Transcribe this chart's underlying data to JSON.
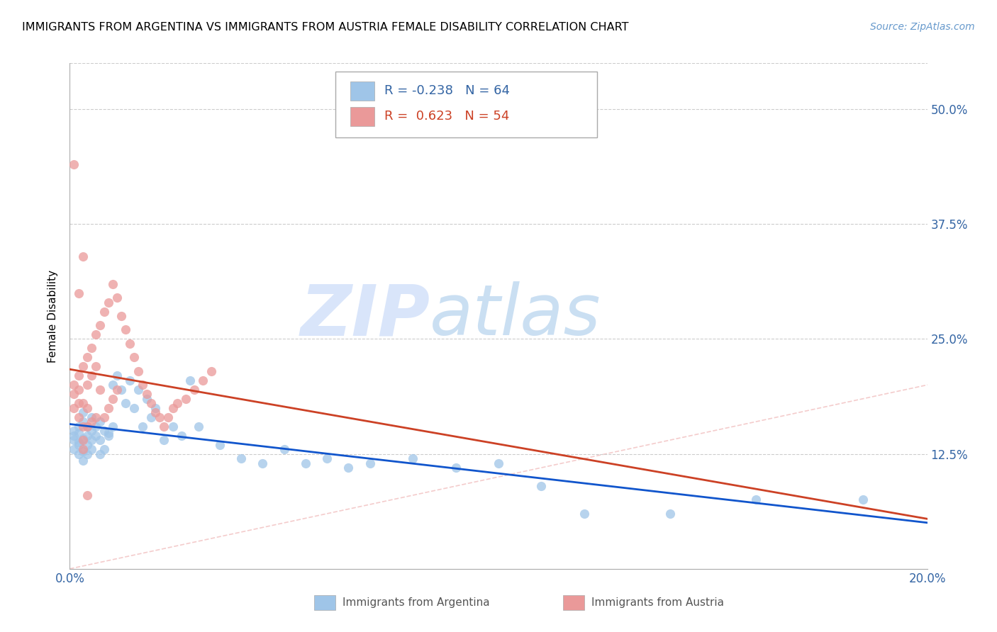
{
  "title": "IMMIGRANTS FROM ARGENTINA VS IMMIGRANTS FROM AUSTRIA FEMALE DISABILITY CORRELATION CHART",
  "source": "Source: ZipAtlas.com",
  "ylabel": "Female Disability",
  "xlim": [
    0.0,
    0.2
  ],
  "ylim": [
    0.0,
    0.55
  ],
  "argentina_color": "#9fc5e8",
  "austria_color": "#ea9999",
  "argentina_line_color": "#1155cc",
  "austria_line_color": "#cc4125",
  "diagonal_color": "#f4cccc",
  "R_argentina": -0.238,
  "N_argentina": 64,
  "R_austria": 0.623,
  "N_austria": 54,
  "watermark_zip": "ZIP",
  "watermark_atlas": "atlas",
  "arg_x": [
    0.001,
    0.001,
    0.001,
    0.001,
    0.002,
    0.002,
    0.002,
    0.002,
    0.002,
    0.003,
    0.003,
    0.003,
    0.003,
    0.004,
    0.004,
    0.004,
    0.004,
    0.005,
    0.005,
    0.005,
    0.006,
    0.006,
    0.007,
    0.007,
    0.008,
    0.008,
    0.009,
    0.01,
    0.01,
    0.011,
    0.012,
    0.013,
    0.014,
    0.015,
    0.016,
    0.017,
    0.018,
    0.019,
    0.02,
    0.022,
    0.024,
    0.026,
    0.028,
    0.03,
    0.035,
    0.04,
    0.045,
    0.05,
    0.055,
    0.06,
    0.065,
    0.07,
    0.08,
    0.09,
    0.1,
    0.11,
    0.12,
    0.14,
    0.16,
    0.185,
    0.003,
    0.005,
    0.007,
    0.009
  ],
  "arg_y": [
    0.14,
    0.15,
    0.13,
    0.145,
    0.135,
    0.125,
    0.155,
    0.148,
    0.138,
    0.142,
    0.128,
    0.16,
    0.118,
    0.145,
    0.155,
    0.135,
    0.125,
    0.15,
    0.14,
    0.13,
    0.155,
    0.145,
    0.16,
    0.14,
    0.15,
    0.13,
    0.148,
    0.2,
    0.155,
    0.21,
    0.195,
    0.18,
    0.205,
    0.175,
    0.195,
    0.155,
    0.185,
    0.165,
    0.175,
    0.14,
    0.155,
    0.145,
    0.205,
    0.155,
    0.135,
    0.12,
    0.115,
    0.13,
    0.115,
    0.12,
    0.11,
    0.115,
    0.12,
    0.11,
    0.115,
    0.09,
    0.06,
    0.06,
    0.075,
    0.075,
    0.17,
    0.165,
    0.125,
    0.145
  ],
  "aut_x": [
    0.001,
    0.001,
    0.001,
    0.002,
    0.002,
    0.002,
    0.002,
    0.003,
    0.003,
    0.003,
    0.003,
    0.003,
    0.004,
    0.004,
    0.004,
    0.004,
    0.005,
    0.005,
    0.005,
    0.006,
    0.006,
    0.006,
    0.007,
    0.007,
    0.008,
    0.008,
    0.009,
    0.009,
    0.01,
    0.01,
    0.011,
    0.011,
    0.012,
    0.013,
    0.014,
    0.015,
    0.016,
    0.017,
    0.018,
    0.019,
    0.02,
    0.021,
    0.022,
    0.023,
    0.024,
    0.025,
    0.027,
    0.029,
    0.031,
    0.033,
    0.001,
    0.002,
    0.003,
    0.004
  ],
  "aut_y": [
    0.2,
    0.19,
    0.175,
    0.21,
    0.195,
    0.18,
    0.165,
    0.22,
    0.18,
    0.155,
    0.14,
    0.13,
    0.23,
    0.2,
    0.175,
    0.155,
    0.24,
    0.21,
    0.16,
    0.255,
    0.22,
    0.165,
    0.265,
    0.195,
    0.28,
    0.165,
    0.29,
    0.175,
    0.31,
    0.185,
    0.295,
    0.195,
    0.275,
    0.26,
    0.245,
    0.23,
    0.215,
    0.2,
    0.19,
    0.18,
    0.17,
    0.165,
    0.155,
    0.165,
    0.175,
    0.18,
    0.185,
    0.195,
    0.205,
    0.215,
    0.44,
    0.3,
    0.34,
    0.08
  ]
}
